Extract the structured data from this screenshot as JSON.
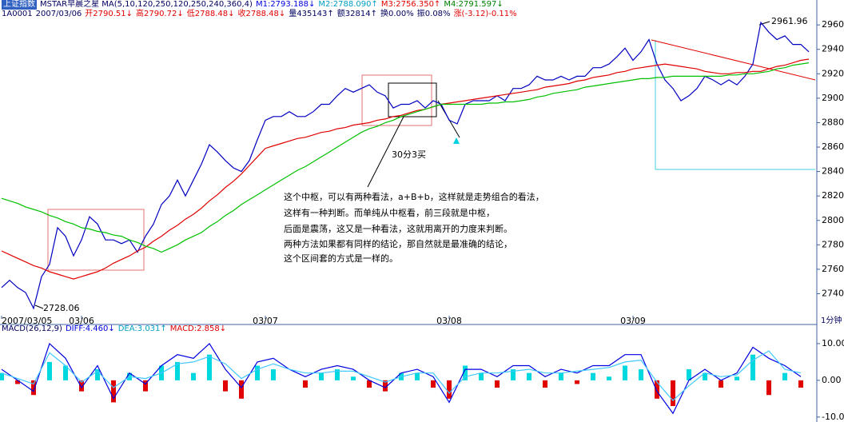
{
  "header": {
    "title": "上证指数",
    "study": "MSTAR早晨之星 MA(5,10,120,250,120,250,240,360,4)",
    "ma_values": [
      "M1:2793.188↓",
      "M2:2788.090↑",
      "M3:2756.350↑",
      "M4:2791.597↓"
    ],
    "code": "1A0001",
    "date": "2007/03/06",
    "quote": [
      "开2790.51↓",
      "高2790.72↓",
      "低2788.48↓",
      "收2788.48↓",
      "量435143↑",
      "额32814↑",
      "换0.00%",
      "振0.08%",
      "涨(-3.12)-0.11%"
    ],
    "macd_study": "MACD(26,12,9)",
    "macd_values": [
      "DIFF:4.460↓",
      "DEA:3.031↑",
      "MACD:2.858↓"
    ],
    "period": "1分钟"
  },
  "chart_data": [
    {
      "type": "line",
      "x": [
        0,
        1,
        2,
        3,
        4,
        5,
        6,
        7,
        8,
        9,
        10,
        11,
        12,
        13,
        14,
        15,
        16,
        17,
        18,
        19,
        20,
        21,
        22,
        23,
        24,
        25,
        26,
        27,
        28,
        29,
        30,
        31,
        32,
        33,
        34,
        35,
        36,
        37,
        38,
        39,
        40,
        41,
        42,
        43,
        44,
        45,
        46,
        47,
        48,
        49,
        50,
        51,
        52,
        53,
        54,
        55,
        56,
        57,
        58,
        59,
        60,
        61,
        62,
        63,
        64,
        65,
        66,
        67,
        68,
        69,
        70,
        71,
        72,
        73,
        74,
        75,
        76,
        77,
        78,
        79,
        80,
        81,
        82,
        83,
        84,
        85,
        86,
        87,
        88,
        89,
        90,
        91,
        92,
        93,
        94,
        95,
        96,
        97,
        98,
        99,
        100,
        101
      ],
      "series": [
        {
          "color": "#0000c0",
          "values": [
            2745,
            2751,
            2745,
            2741,
            2728,
            2754,
            2764,
            2794,
            2787,
            2771,
            2784,
            2803,
            2797,
            2784,
            2784,
            2781,
            2784,
            2774,
            2787,
            2797,
            2813,
            2820,
            2833,
            2820,
            2833,
            2846,
            2862,
            2856,
            2849,
            2843,
            2840,
            2849,
            2866,
            2882,
            2885,
            2885,
            2889,
            2885,
            2885,
            2889,
            2895,
            2895,
            2902,
            2908,
            2905,
            2908,
            2911,
            2905,
            2902,
            2892,
            2895,
            2895,
            2898,
            2892,
            2898,
            2895,
            2882,
            2879,
            2895,
            2898,
            2898,
            2898,
            2902,
            2898,
            2908,
            2908,
            2911,
            2918,
            2915,
            2915,
            2918,
            2915,
            2918,
            2918,
            2925,
            2925,
            2928,
            2934,
            2941,
            2931,
            2938,
            2948,
            2928,
            2915,
            2908,
            2898,
            2902,
            2908,
            2918,
            2915,
            2911,
            2915,
            2911,
            2918,
            2928,
            2962,
            2954,
            2948,
            2951,
            2944,
            2944,
            2938
          ]
        },
        {
          "color": "#e00000",
          "values": [
            2775,
            2772,
            2769,
            2766,
            2763,
            2761,
            2758,
            2756,
            2754,
            2752,
            2754,
            2756,
            2758,
            2761,
            2765,
            2768,
            2771,
            2775,
            2778,
            2783,
            2787,
            2792,
            2796,
            2801,
            2805,
            2810,
            2816,
            2821,
            2827,
            2832,
            2838,
            2845,
            2852,
            2859,
            2861,
            2863,
            2865,
            2867,
            2868,
            2870,
            2872,
            2873,
            2875,
            2876,
            2878,
            2879,
            2880,
            2882,
            2883,
            2885,
            2886,
            2888,
            2890,
            2891,
            2893,
            2895,
            2896,
            2897,
            2898,
            2899,
            2900,
            2901,
            2902,
            2903,
            2904,
            2905,
            2906,
            2907,
            2909,
            2910,
            2911,
            2912,
            2914,
            2915,
            2917,
            2918,
            2919,
            2921,
            2922,
            2924,
            2925,
            2926,
            2927,
            2928,
            2927,
            2926,
            2925,
            2924,
            2922,
            2921,
            2920,
            2920,
            2921,
            2921,
            2922,
            2922,
            2924,
            2926,
            2927,
            2929,
            2931,
            2932
          ]
        },
        {
          "color": "#00c000",
          "values": [
            2818,
            2816,
            2814,
            2811,
            2809,
            2807,
            2804,
            2802,
            2799,
            2797,
            2794,
            2793,
            2791,
            2790,
            2788,
            2787,
            2784,
            2782,
            2779,
            2777,
            2774,
            2777,
            2780,
            2784,
            2787,
            2790,
            2795,
            2799,
            2804,
            2808,
            2813,
            2817,
            2821,
            2825,
            2829,
            2833,
            2837,
            2841,
            2844,
            2848,
            2852,
            2856,
            2860,
            2864,
            2868,
            2872,
            2875,
            2877,
            2880,
            2882,
            2885,
            2887,
            2889,
            2891,
            2893,
            2895,
            2895,
            2895,
            2895,
            2895,
            2895,
            2896,
            2896,
            2897,
            2897,
            2898,
            2899,
            2901,
            2902,
            2904,
            2905,
            2906,
            2907,
            2909,
            2910,
            2911,
            2912,
            2913,
            2914,
            2915,
            2916,
            2916,
            2917,
            2917,
            2918,
            2918,
            2918,
            2918,
            2918,
            2918,
            2918,
            2919,
            2919,
            2920,
            2920,
            2921,
            2922,
            2924,
            2925,
            2927,
            2928,
            2929
          ]
        }
      ],
      "xlim": [
        0,
        102
      ],
      "ylim": [
        2722,
        2966
      ],
      "xticks": [
        {
          "value": 0,
          "label": "2007/03/05"
        },
        {
          "value": 10,
          "label": "03/06"
        },
        {
          "value": 33,
          "label": "03/07"
        },
        {
          "value": 56,
          "label": "03/08"
        },
        {
          "value": 79,
          "label": "03/09"
        }
      ],
      "yticks": [
        2740,
        2760,
        2780,
        2800,
        2820,
        2840,
        2860,
        2880,
        2900,
        2920,
        2940,
        2960
      ],
      "annotations": [
        "2728.06",
        "2961.96",
        "30分3买",
        "这个中枢，可以有两种看法，a+B+b，这样就是走势组合的看法，",
        "这样有一种判断。而单纯从中枢看，前三段就是中枢，",
        "后面是震荡，这又是一种看法，这就用离开的力度来判断。",
        "两种方法如果都有同样的结论，那自然就是最准确的结论，",
        "这个区间套的方式是一样的。"
      ]
    },
    {
      "type": "bar",
      "x": [
        0,
        2,
        4,
        6,
        8,
        10,
        12,
        14,
        16,
        18,
        20,
        22,
        24,
        26,
        28,
        30,
        32,
        34,
        36,
        38,
        40,
        42,
        44,
        46,
        48,
        50,
        52,
        54,
        56,
        58,
        60,
        62,
        64,
        66,
        68,
        70,
        72,
        74,
        76,
        78,
        80,
        82,
        84,
        86,
        88,
        90,
        92,
        94,
        96,
        98,
        100
      ],
      "series": [
        {
          "style": "bar",
          "up_color": "#00d8e0",
          "down_color": "#e00000",
          "values": [
            2,
            -1,
            -4,
            5,
            4,
            -3,
            3,
            -6,
            2,
            -3,
            4,
            5,
            2,
            7,
            -3,
            -5,
            4,
            3,
            0,
            -2,
            2,
            3,
            1,
            -2,
            -3,
            2,
            2,
            -2,
            -5,
            4,
            2,
            -2,
            3,
            2,
            -2,
            2,
            -1,
            2,
            1,
            4,
            3,
            -5,
            -7,
            3,
            2,
            -2,
            1,
            7,
            -4,
            2,
            -2
          ]
        },
        {
          "style": "line",
          "color": "#0000e0",
          "values": [
            3,
            0,
            -3,
            10,
            6,
            -2,
            4,
            -5,
            2,
            -1,
            4,
            7,
            6,
            10,
            3,
            -2,
            5,
            6,
            3,
            1,
            3,
            4,
            3,
            0,
            -2,
            2,
            3,
            1,
            -6,
            3,
            3,
            1,
            4,
            4,
            1,
            3,
            2,
            4,
            4,
            7,
            7,
            -3,
            -9,
            0,
            3,
            0,
            2,
            9,
            6,
            4,
            1
          ]
        },
        {
          "style": "line",
          "color": "#40c8ff",
          "values": [
            2,
            0.5,
            -1,
            7.5,
            4,
            -0.5,
            2.5,
            -2,
            1,
            0.5,
            2,
            4.5,
            5,
            6.5,
            4.5,
            0.5,
            3,
            4.5,
            3,
            2,
            2,
            2.5,
            2.5,
            1,
            -0.5,
            1,
            2,
            2,
            -3.5,
            1,
            2,
            2,
            2.5,
            3,
            2,
            2,
            2.5,
            3,
            3.5,
            5,
            5.5,
            -0.5,
            -5.5,
            -1.5,
            2,
            1,
            1.5,
            5.5,
            8,
            3,
            2
          ]
        }
      ],
      "xlim": [
        0,
        102
      ],
      "ylim": [
        -10.7,
        13.9
      ],
      "yticks": [
        {
          "value": 10,
          "label": "10.00"
        },
        {
          "value": 0,
          "label": "0.00"
        },
        {
          "value": -10,
          "label": "-10.00"
        }
      ]
    }
  ]
}
